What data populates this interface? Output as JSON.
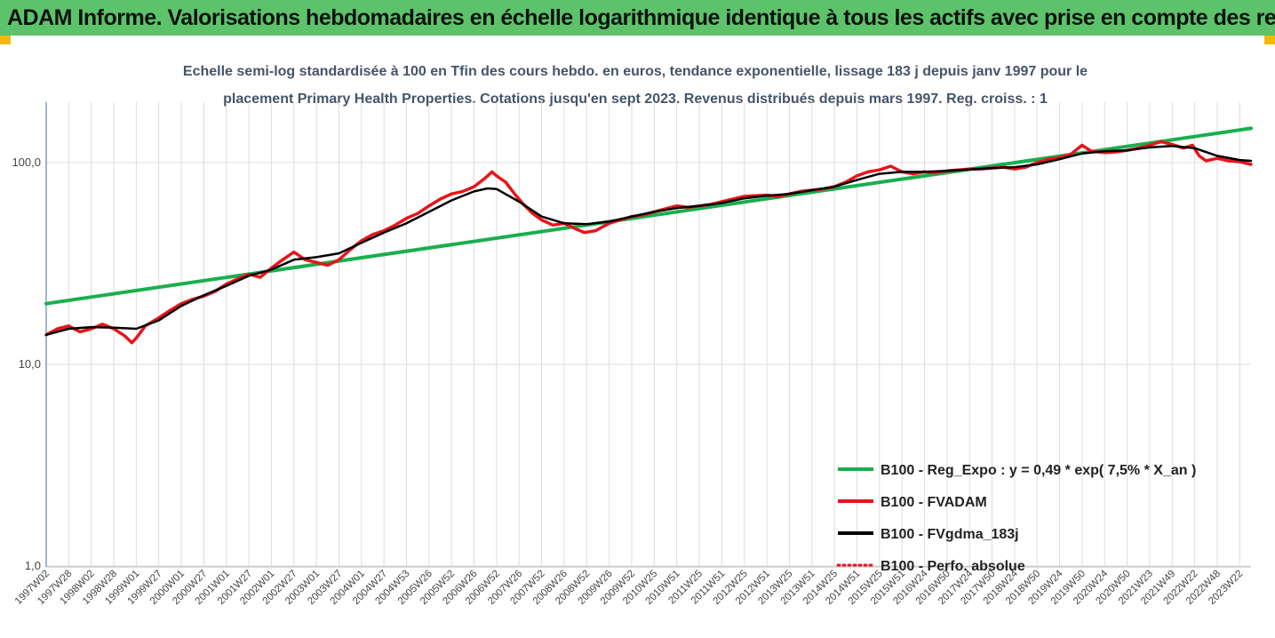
{
  "banner": {
    "title": "ADAM Informe. Valorisations hebdomadaires en échelle logarithmique identique à tous les actifs avec prise en compte des revenus co"
  },
  "colors": {
    "banner": "#5cc36b",
    "accent": "#f5b800",
    "reg": "#1aae4e",
    "fvadam": "#e8141b",
    "fvgdma": "#000000",
    "perfo": "#e8141b",
    "grid": "#dcdcdc"
  },
  "chart_data": {
    "type": "line",
    "title_line1": "Echelle semi-log standardisée à 100 en Tfin des cours hebdo. en euros, tendance exponentielle, lissage 183 j depuis janv 1997 pour le",
    "title_line2": "placement Primary Health Properties. Cotations jusqu'en sept 2023. Revenus distribués depuis mars 1997. Reg. croiss. : 1",
    "y_scale": "log",
    "ylim": [
      1,
      200
    ],
    "y_ticks": [
      {
        "value": 100,
        "label": "100,0"
      },
      {
        "value": 10,
        "label": "10,0"
      },
      {
        "value": 1,
        "label": "1,0"
      }
    ],
    "xlim": [
      1997.0,
      2023.75
    ],
    "x_ticks": [
      {
        "t": 1997.0,
        "label": "1997W02"
      },
      {
        "t": 1997.5,
        "label": "1997W28"
      },
      {
        "t": 1998.0,
        "label": "1998W02"
      },
      {
        "t": 1998.5,
        "label": "1998W28"
      },
      {
        "t": 1999.0,
        "label": "1999W01"
      },
      {
        "t": 1999.5,
        "label": "1999W27"
      },
      {
        "t": 2000.0,
        "label": "2000W01"
      },
      {
        "t": 2000.5,
        "label": "2000W27"
      },
      {
        "t": 2001.0,
        "label": "2001W01"
      },
      {
        "t": 2001.5,
        "label": "2001W27"
      },
      {
        "t": 2002.0,
        "label": "2002W01"
      },
      {
        "t": 2002.5,
        "label": "2002W27"
      },
      {
        "t": 2003.0,
        "label": "2003W01"
      },
      {
        "t": 2003.5,
        "label": "2003W27"
      },
      {
        "t": 2004.0,
        "label": "2004W01"
      },
      {
        "t": 2004.5,
        "label": "2004W27"
      },
      {
        "t": 2005.0,
        "label": "2004W53"
      },
      {
        "t": 2005.5,
        "label": "2005W26"
      },
      {
        "t": 2006.0,
        "label": "2005W52"
      },
      {
        "t": 2006.5,
        "label": "2006W26"
      },
      {
        "t": 2007.0,
        "label": "2006W52"
      },
      {
        "t": 2007.5,
        "label": "2007W26"
      },
      {
        "t": 2008.0,
        "label": "2007W52"
      },
      {
        "t": 2008.5,
        "label": "2008W26"
      },
      {
        "t": 2009.0,
        "label": "2008W52"
      },
      {
        "t": 2009.5,
        "label": "2009W26"
      },
      {
        "t": 2010.0,
        "label": "2009W52"
      },
      {
        "t": 2010.5,
        "label": "2010W25"
      },
      {
        "t": 2011.0,
        "label": "2010W51"
      },
      {
        "t": 2011.5,
        "label": "2011W25"
      },
      {
        "t": 2012.0,
        "label": "2011W51"
      },
      {
        "t": 2012.5,
        "label": "2012W25"
      },
      {
        "t": 2013.0,
        "label": "2012W51"
      },
      {
        "t": 2013.5,
        "label": "2013W25"
      },
      {
        "t": 2014.0,
        "label": "2013W51"
      },
      {
        "t": 2014.5,
        "label": "2014W25"
      },
      {
        "t": 2015.0,
        "label": "2014W51"
      },
      {
        "t": 2015.5,
        "label": "2015W25"
      },
      {
        "t": 2016.0,
        "label": "2015W51"
      },
      {
        "t": 2016.5,
        "label": "2016W24"
      },
      {
        "t": 2017.0,
        "label": "2016W50"
      },
      {
        "t": 2017.5,
        "label": "2017W24"
      },
      {
        "t": 2018.0,
        "label": "2017W50"
      },
      {
        "t": 2018.5,
        "label": "2018W24"
      },
      {
        "t": 2019.0,
        "label": "2018W50"
      },
      {
        "t": 2019.5,
        "label": "2019W24"
      },
      {
        "t": 2020.0,
        "label": "2019W50"
      },
      {
        "t": 2020.5,
        "label": "2020W24"
      },
      {
        "t": 2021.0,
        "label": "2020W50"
      },
      {
        "t": 2021.5,
        "label": "2021W23"
      },
      {
        "t": 2022.0,
        "label": "2021W49"
      },
      {
        "t": 2022.5,
        "label": "2022W22"
      },
      {
        "t": 2023.0,
        "label": "2022W48"
      },
      {
        "t": 2023.5,
        "label": "2023W22"
      }
    ],
    "grid": {
      "vertical": true,
      "horizontal": true
    },
    "legend_position": "bottom-right",
    "series": [
      {
        "name": "B100 - Reg_Expo : y = 0,49 * exp( 7,5% *  X_an )",
        "color": "#1aae4e",
        "points": [
          [
            1997.0,
            20.0
          ],
          [
            2023.75,
            148.0
          ]
        ]
      },
      {
        "name": "B100 - FVADAM",
        "color": "#e8141b",
        "points": [
          [
            1997.0,
            14.0
          ],
          [
            1997.25,
            15.0
          ],
          [
            1997.5,
            15.5
          ],
          [
            1997.75,
            14.5
          ],
          [
            1998.0,
            15.0
          ],
          [
            1998.25,
            15.8
          ],
          [
            1998.5,
            15.0
          ],
          [
            1998.75,
            13.8
          ],
          [
            1998.9,
            12.8
          ],
          [
            1999.0,
            13.5
          ],
          [
            1999.2,
            15.5
          ],
          [
            1999.5,
            17.0
          ],
          [
            1999.75,
            18.5
          ],
          [
            2000.0,
            20.0
          ],
          [
            2000.25,
            21.0
          ],
          [
            2000.5,
            21.8
          ],
          [
            2000.75,
            23.0
          ],
          [
            2001.0,
            25.0
          ],
          [
            2001.25,
            26.5
          ],
          [
            2001.5,
            28.0
          ],
          [
            2001.75,
            27.0
          ],
          [
            2002.0,
            30.0
          ],
          [
            2002.25,
            33.0
          ],
          [
            2002.5,
            36.0
          ],
          [
            2002.75,
            33.0
          ],
          [
            2003.0,
            32.0
          ],
          [
            2003.25,
            31.0
          ],
          [
            2003.5,
            33.0
          ],
          [
            2003.75,
            37.0
          ],
          [
            2004.0,
            41.0
          ],
          [
            2004.25,
            44.0
          ],
          [
            2004.5,
            46.0
          ],
          [
            2004.75,
            49.0
          ],
          [
            2005.0,
            53.0
          ],
          [
            2005.25,
            56.0
          ],
          [
            2005.5,
            61.0
          ],
          [
            2005.75,
            66.0
          ],
          [
            2006.0,
            70.0
          ],
          [
            2006.25,
            72.0
          ],
          [
            2006.5,
            76.0
          ],
          [
            2006.75,
            84.0
          ],
          [
            2006.9,
            90.0
          ],
          [
            2007.0,
            86.0
          ],
          [
            2007.2,
            80.0
          ],
          [
            2007.4,
            70.0
          ],
          [
            2007.6,
            62.0
          ],
          [
            2007.8,
            56.0
          ],
          [
            2008.0,
            52.0
          ],
          [
            2008.25,
            49.0
          ],
          [
            2008.5,
            50.0
          ],
          [
            2008.75,
            47.0
          ],
          [
            2008.95,
            45.0
          ],
          [
            2009.2,
            46.0
          ],
          [
            2009.5,
            50.0
          ],
          [
            2009.75,
            52.0
          ],
          [
            2010.0,
            54.0
          ],
          [
            2010.25,
            55.0
          ],
          [
            2010.5,
            57.0
          ],
          [
            2010.75,
            59.0
          ],
          [
            2011.0,
            61.0
          ],
          [
            2011.25,
            60.0
          ],
          [
            2011.5,
            61.0
          ],
          [
            2011.75,
            62.0
          ],
          [
            2012.0,
            64.0
          ],
          [
            2012.25,
            66.0
          ],
          [
            2012.5,
            68.0
          ],
          [
            2012.75,
            68.5
          ],
          [
            2013.0,
            69.0
          ],
          [
            2013.25,
            68.0
          ],
          [
            2013.5,
            70.0
          ],
          [
            2013.75,
            72.0
          ],
          [
            2014.0,
            73.0
          ],
          [
            2014.25,
            74.0
          ],
          [
            2014.5,
            76.0
          ],
          [
            2014.75,
            80.0
          ],
          [
            2015.0,
            86.0
          ],
          [
            2015.25,
            90.0
          ],
          [
            2015.5,
            92.0
          ],
          [
            2015.75,
            96.0
          ],
          [
            2016.0,
            90.0
          ],
          [
            2016.25,
            88.0
          ],
          [
            2016.5,
            90.0
          ],
          [
            2016.75,
            89.0
          ],
          [
            2017.0,
            91.0
          ],
          [
            2017.25,
            92.0
          ],
          [
            2017.5,
            93.0
          ],
          [
            2017.75,
            93.0
          ],
          [
            2018.0,
            94.0
          ],
          [
            2018.25,
            95.0
          ],
          [
            2018.5,
            93.0
          ],
          [
            2018.75,
            95.0
          ],
          [
            2019.0,
            100.0
          ],
          [
            2019.25,
            104.0
          ],
          [
            2019.5,
            106.0
          ],
          [
            2019.75,
            110.0
          ],
          [
            2020.0,
            122.0
          ],
          [
            2020.2,
            114.0
          ],
          [
            2020.5,
            112.0
          ],
          [
            2020.75,
            113.0
          ],
          [
            2021.0,
            115.0
          ],
          [
            2021.25,
            118.0
          ],
          [
            2021.5,
            122.0
          ],
          [
            2021.75,
            127.0
          ],
          [
            2022.0,
            123.0
          ],
          [
            2022.25,
            118.0
          ],
          [
            2022.45,
            122.0
          ],
          [
            2022.6,
            108.0
          ],
          [
            2022.75,
            102.0
          ],
          [
            2023.0,
            105.0
          ],
          [
            2023.25,
            102.0
          ],
          [
            2023.5,
            101.0
          ],
          [
            2023.75,
            98.0
          ]
        ]
      },
      {
        "name": "B100 - FVgdma_183j",
        "color": "#000000",
        "points": [
          [
            1997.0,
            14.0
          ],
          [
            1997.5,
            15.0
          ],
          [
            1998.0,
            15.3
          ],
          [
            1998.5,
            15.2
          ],
          [
            1999.0,
            15.0
          ],
          [
            1999.5,
            16.5
          ],
          [
            2000.0,
            19.5
          ],
          [
            2000.5,
            22.0
          ],
          [
            2001.0,
            24.5
          ],
          [
            2001.5,
            27.5
          ],
          [
            2002.0,
            29.5
          ],
          [
            2002.5,
            33.0
          ],
          [
            2003.0,
            34.0
          ],
          [
            2003.5,
            35.5
          ],
          [
            2004.0,
            40.0
          ],
          [
            2004.5,
            45.0
          ],
          [
            2005.0,
            50.0
          ],
          [
            2005.5,
            57.0
          ],
          [
            2006.0,
            65.0
          ],
          [
            2006.5,
            72.0
          ],
          [
            2006.8,
            74.5
          ],
          [
            2007.0,
            74.0
          ],
          [
            2007.5,
            64.0
          ],
          [
            2008.0,
            54.0
          ],
          [
            2008.5,
            50.0
          ],
          [
            2009.0,
            49.5
          ],
          [
            2009.5,
            51.0
          ],
          [
            2010.0,
            54.0
          ],
          [
            2010.5,
            57.0
          ],
          [
            2011.0,
            59.5
          ],
          [
            2011.5,
            61.0
          ],
          [
            2012.0,
            63.0
          ],
          [
            2012.5,
            66.5
          ],
          [
            2013.0,
            68.5
          ],
          [
            2013.5,
            70.0
          ],
          [
            2014.0,
            73.0
          ],
          [
            2014.5,
            76.0
          ],
          [
            2015.0,
            82.0
          ],
          [
            2015.5,
            88.0
          ],
          [
            2016.0,
            90.0
          ],
          [
            2016.5,
            90.0
          ],
          [
            2017.0,
            91.0
          ],
          [
            2017.5,
            92.5
          ],
          [
            2018.0,
            94.0
          ],
          [
            2018.5,
            95.0
          ],
          [
            2019.0,
            98.0
          ],
          [
            2019.5,
            104.0
          ],
          [
            2020.0,
            111.0
          ],
          [
            2020.5,
            114.0
          ],
          [
            2021.0,
            115.0
          ],
          [
            2021.5,
            119.0
          ],
          [
            2022.0,
            121.0
          ],
          [
            2022.5,
            118.0
          ],
          [
            2023.0,
            108.0
          ],
          [
            2023.5,
            103.0
          ],
          [
            2023.75,
            102.0
          ]
        ]
      },
      {
        "name": "B100 - Perfo. absolue",
        "color": "#e8141b",
        "style": "dotted",
        "points": []
      }
    ]
  }
}
